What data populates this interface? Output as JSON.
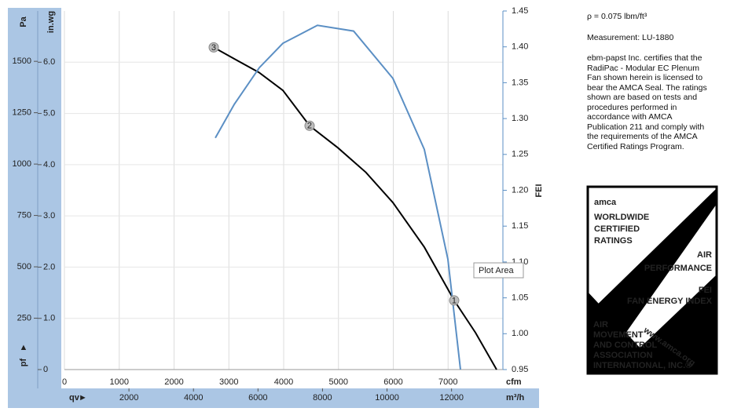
{
  "chart_data": {
    "type": "line",
    "x_label": "cfm",
    "x2_label": "m³/h",
    "x2_arrow_label": "qv",
    "y_label": "in.wg",
    "y_pa_label": "Pa",
    "y_pa_arrow_label": "pf",
    "y2_label": "FEI",
    "xlim": [
      0,
      8000
    ],
    "xticks": [
      0,
      1000,
      2000,
      3000,
      4000,
      5000,
      6000,
      7000
    ],
    "x2lim": [
      0,
      13592
    ],
    "x2ticks": [
      2000,
      4000,
      6000,
      8000,
      10000,
      12000
    ],
    "ylim": [
      0,
      7
    ],
    "yticks": [
      0,
      {
        "value": 1,
        "label": "1.0"
      },
      {
        "value": 2,
        "label": "2.0"
      },
      {
        "value": 3,
        "label": "3.0"
      },
      {
        "value": 4,
        "label": "4.0"
      },
      {
        "value": 5,
        "label": "5.0"
      },
      {
        "value": 6,
        "label": "6.0"
      }
    ],
    "y_pa_lim": [
      0,
      1745
    ],
    "y_pa_ticks": [
      250,
      500,
      750,
      1000,
      1250,
      1500
    ],
    "y2lim": [
      0.95,
      1.45
    ],
    "y2ticks": [
      0.95,
      {
        "value": 1.0,
        "label": "1.00"
      },
      1.05,
      {
        "value": 1.1,
        "label": "1.10"
      },
      1.15,
      {
        "value": 1.2,
        "label": "1.20"
      },
      1.25,
      {
        "value": 1.3,
        "label": "1.30"
      },
      1.35,
      {
        "value": 1.4,
        "label": "1.40"
      },
      1.45
    ],
    "grid": true,
    "series": [
      {
        "color": "#000000",
        "axis": "y",
        "x": [
          2724,
          3125,
          3550,
          3986,
          4473,
          4989,
          5500,
          5993,
          6566,
          7111,
          7500,
          7885
        ],
        "values": [
          6.29,
          6.05,
          5.8,
          5.45,
          4.76,
          4.33,
          3.85,
          3.26,
          2.39,
          1.35,
          0.72,
          0
        ]
      },
      {
        "color": "#5b8fc4",
        "axis": "y2",
        "x": [
          2753,
          3100,
          3556,
          3986,
          4616,
          5276,
          5993,
          6566,
          6996,
          7226
        ],
        "values": [
          1.273,
          1.32,
          1.371,
          1.405,
          1.43,
          1.422,
          1.356,
          1.257,
          1.104,
          0.95
        ]
      }
    ],
    "points": [
      {
        "label": "3",
        "x": 2724,
        "y": 6.29
      },
      {
        "label": "2",
        "x": 4473,
        "y": 4.76
      },
      {
        "label": "1",
        "x": 7111,
        "y": 1.35
      }
    ],
    "tooltip": "Plot Area"
  },
  "info": {
    "density": "ρ = 0.075 lbm/ft³",
    "measurement": "Measurement: LU-1880",
    "certification": "ebm-papst Inc. certifies that the RadiPac - Modular EC Plenum Fan shown herein is licensed to bear the AMCA Seal. The ratings shown are based on tests and procedures performed in accordance with AMCA Publication 211 and comply with the requirements of the AMCA Certified Ratings Program."
  },
  "logo": {
    "brand": "amca",
    "line1": "WORLDWIDE",
    "line2": "CERTIFIED",
    "line3": "RATINGS",
    "air": "AIR",
    "performance": "PERFORMANCE",
    "fei": "FEI",
    "fei_full": "FAN ENERGY INDEX",
    "url": "www.amca.org",
    "org": [
      "AIR",
      "MOVEMENT",
      "AND CONTROL",
      "ASSOCIATION",
      "INTERNATIONAL, INC.®"
    ]
  }
}
